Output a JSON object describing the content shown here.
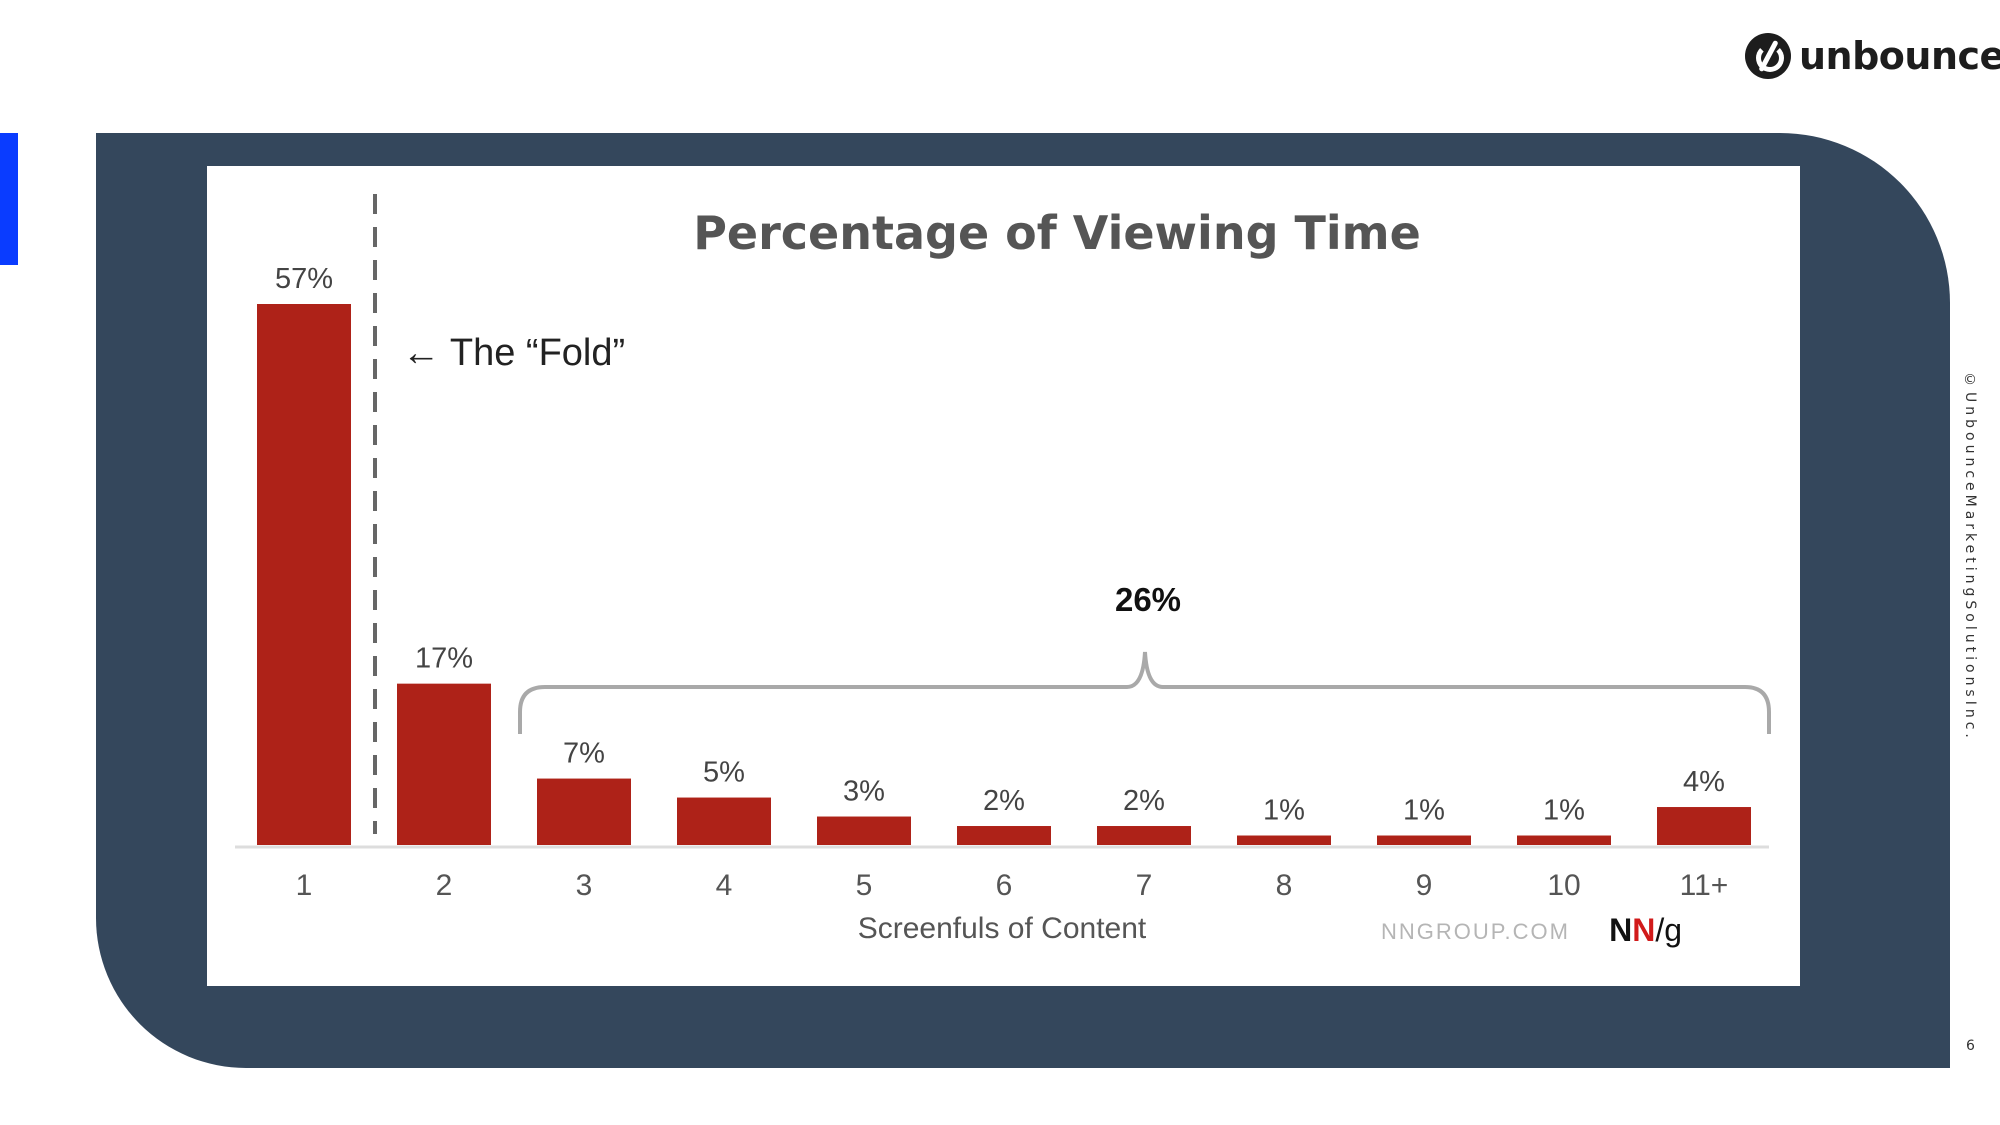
{
  "brand": {
    "name": "unbounce",
    "logo_icon": "unbounce-logo-icon"
  },
  "footer": {
    "copyright": "©UnbounceMarketingSolutionsInc.",
    "page_number": "6"
  },
  "colors": {
    "panel": "#34475c",
    "bar": "#ae2218",
    "accent": "#0a3cff",
    "bracket": "#a9a9a9"
  },
  "chart_data": {
    "type": "bar",
    "title": "Percentage of Viewing Time",
    "xlabel": "Screenfuls of Content",
    "ylabel": "",
    "categories": [
      "1",
      "2",
      "3",
      "4",
      "5",
      "6",
      "7",
      "8",
      "9",
      "10",
      "11+"
    ],
    "values": [
      57,
      17,
      7,
      5,
      3,
      2,
      2,
      1,
      1,
      1,
      4
    ],
    "value_labels": [
      "57%",
      "17%",
      "7%",
      "5%",
      "3%",
      "2%",
      "2%",
      "1%",
      "1%",
      "1%",
      "4%"
    ],
    "ylim": [
      0,
      57
    ],
    "grid": false,
    "annotations": {
      "fold_label": "← The “Fold”",
      "bracket_label": "26%",
      "source": "NNGROUP.COM",
      "source_logo": "NN/g"
    }
  }
}
